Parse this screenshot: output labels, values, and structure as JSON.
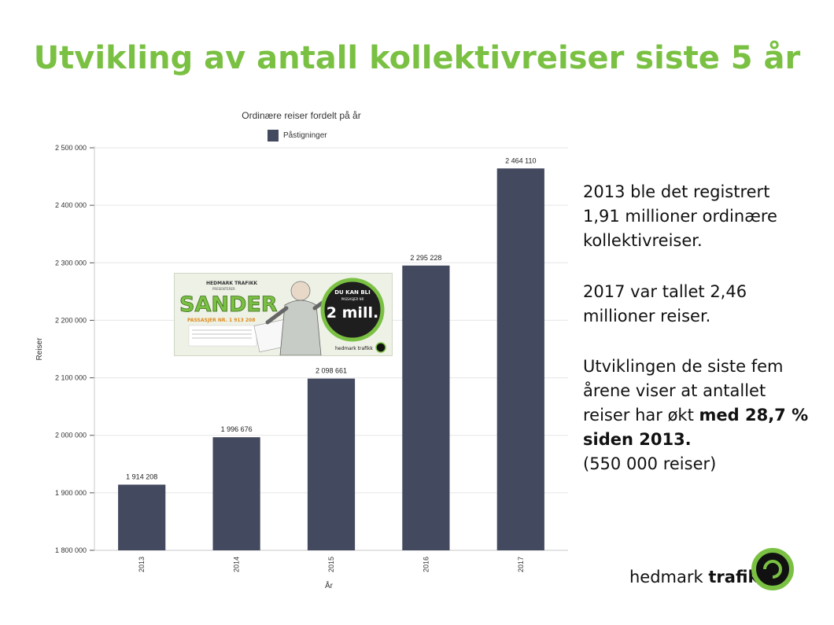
{
  "slide": {
    "title": "Utvikling av antall kollektivreiser siste 5 år"
  },
  "text": {
    "p1": [
      "2013 ble det registrert",
      "1,91 millioner ordinære",
      "kollektivreiser."
    ],
    "p2": [
      "2017 var tallet 2,46",
      "millioner reiser."
    ],
    "p3_lines": [
      "Utviklingen de siste fem",
      "årene viser at antallet"
    ],
    "p3_line3_normal": "reiser har økt ",
    "p3_line3_bold": "med 28,7 %",
    "p3_line4_bold": "siden 2013.",
    "p3_line5": "(550 000 reiser)"
  },
  "logo": {
    "word1": "hedmark",
    "word2": "trafikk",
    "color": "#7ac143"
  },
  "ad": {
    "brand": "HEDMARK TRAFIKK",
    "presents": "PRESENTERER",
    "name": "SANDER",
    "passenger": "PASSASJER NR. 1 913 208",
    "badge_top": "DU KAN BLI",
    "badge_mid": "PASSASJER NR",
    "badge_big": "2 mill.",
    "logo": "hedmark trafikk"
  },
  "chart_data": {
    "type": "bar",
    "title": "Ordinære reiser fordelt på år",
    "xlabel": "År",
    "ylabel": "Reiser",
    "categories": [
      "2013",
      "2014",
      "2015",
      "2016",
      "2017"
    ],
    "series": [
      {
        "name": "Påstigninger",
        "values": [
          1914208,
          1996676,
          2098661,
          2295228,
          2464110
        ],
        "labels": [
          "1 914 208",
          "1 996 676",
          "2 098 661",
          "2 295 228",
          "2 464 110"
        ]
      }
    ],
    "ylim": [
      1800000,
      2500000
    ],
    "yticks": [
      1800000,
      1900000,
      2000000,
      2100000,
      2200000,
      2300000,
      2400000,
      2500000
    ],
    "ytick_labels": [
      "1 800 000",
      "1 900 000",
      "2 000 000",
      "2 100 000",
      "2 200 000",
      "2 300 000",
      "2 400 000",
      "2 500 000"
    ],
    "grid": true,
    "legend": "top",
    "bar_color": "#43495e"
  }
}
